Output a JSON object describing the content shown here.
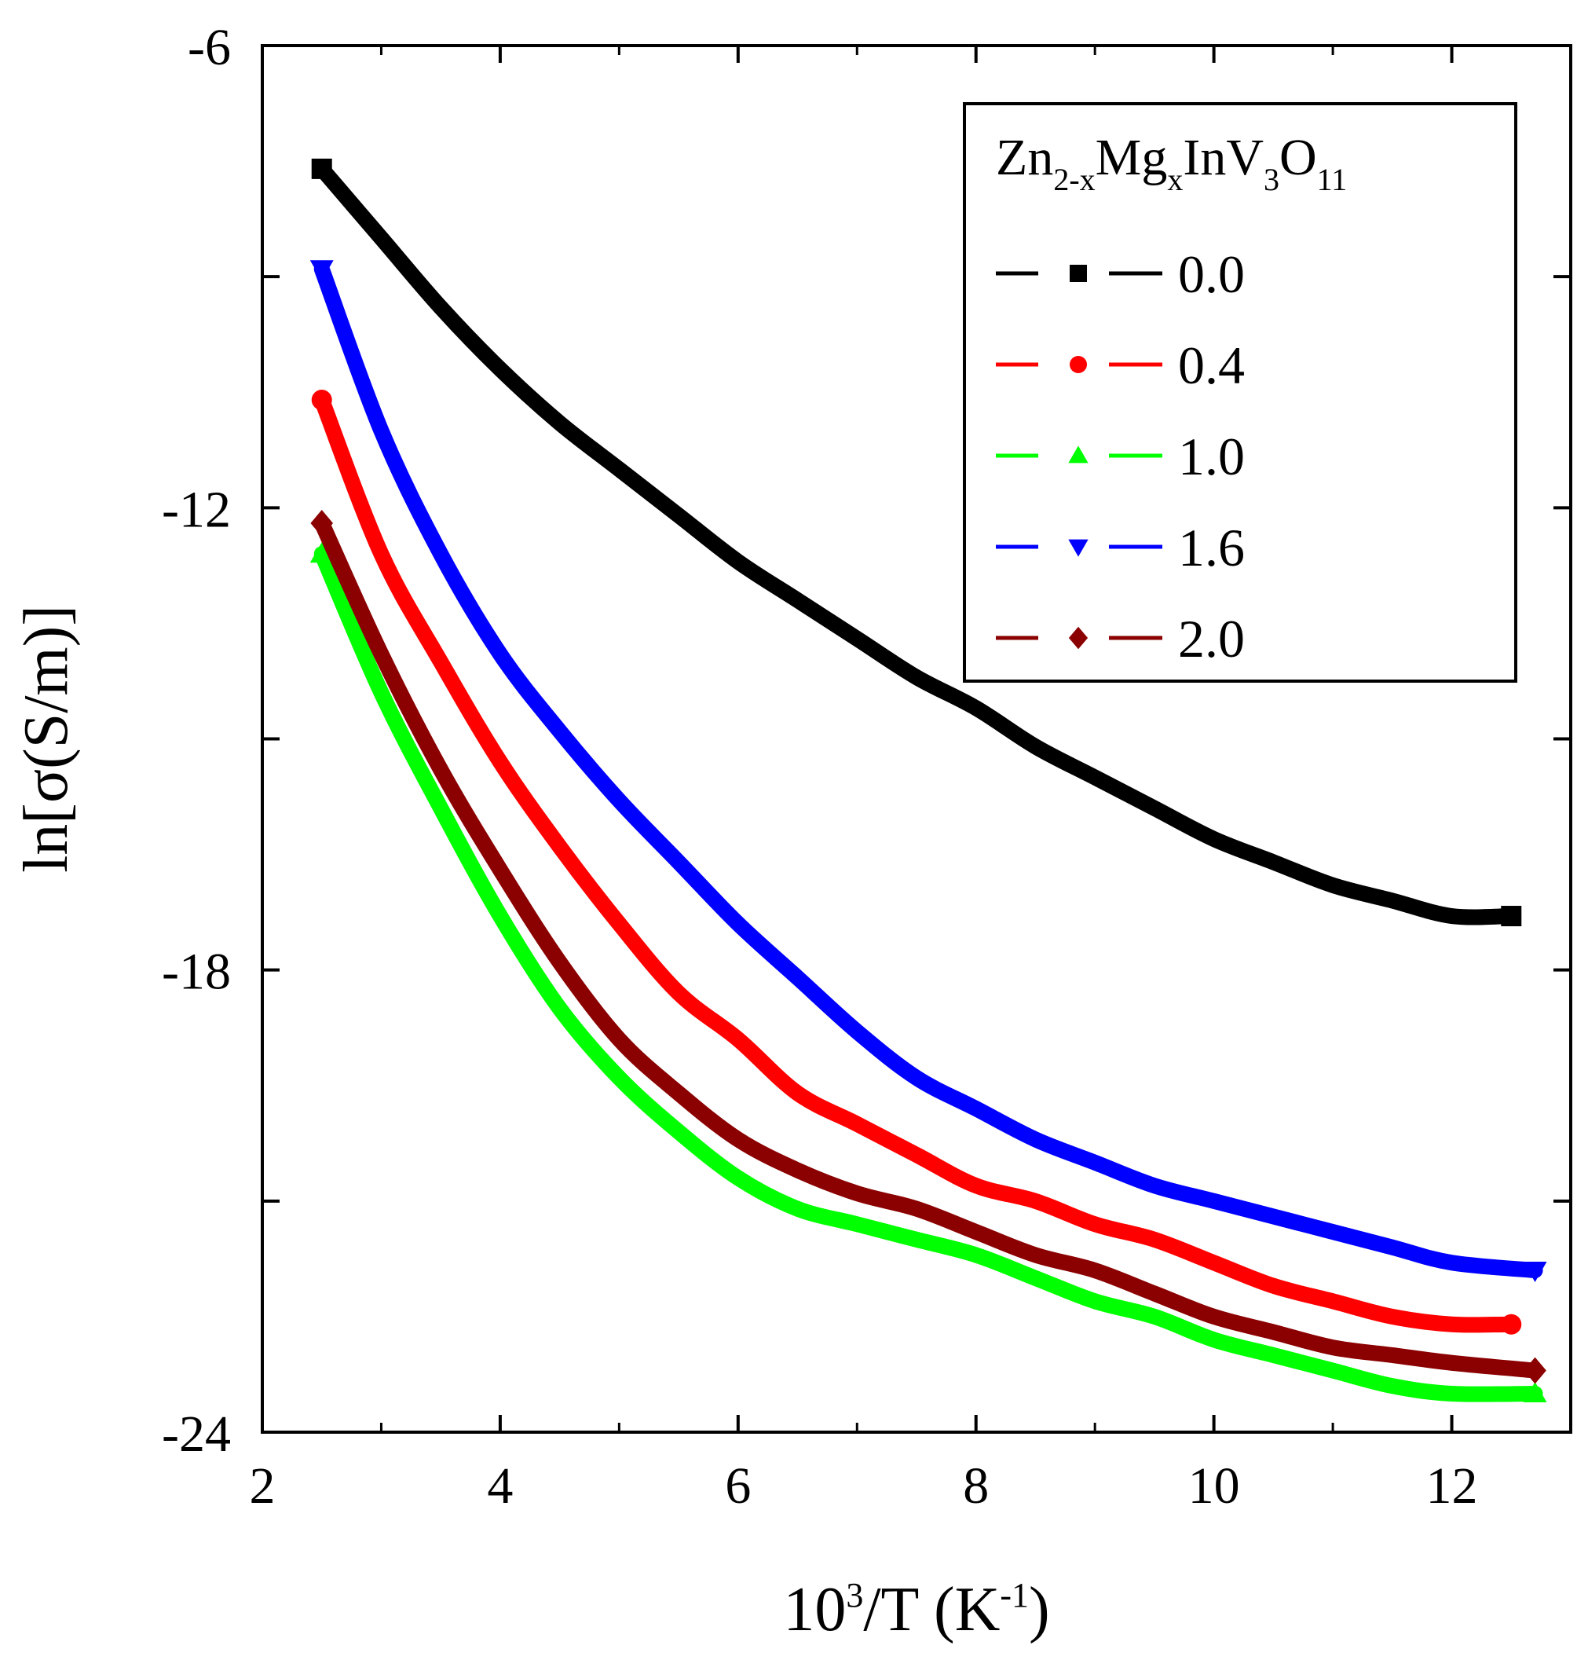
{
  "chart_data": {
    "type": "line",
    "title": "",
    "xlabel": {
      "base": "10",
      "base_sup": "3",
      "mid": "/T  (K",
      "mid_sup": "-1",
      "end": ")"
    },
    "ylabel": "ln[σ(S/m)]",
    "xlim": [
      2,
      13
    ],
    "ylim": [
      -24,
      -6
    ],
    "x_ticks": [
      2,
      4,
      6,
      8,
      10,
      12
    ],
    "x_tick_labels": [
      "2",
      "4",
      "6",
      "8",
      "10",
      "12"
    ],
    "y_ticks": [
      -24,
      -18,
      -12,
      -6
    ],
    "y_tick_labels": [
      "-24",
      "-18",
      "-12",
      "-6"
    ],
    "y_minor_ticks": [
      -21,
      -15,
      -9
    ],
    "grid": false,
    "legend": {
      "position": "top-right",
      "title": {
        "parts": [
          {
            "t": "Zn",
            "sub": false
          },
          {
            "t": "2-x",
            "sub": true
          },
          {
            "t": "Mg",
            "sub": false
          },
          {
            "t": "x",
            "sub": true
          },
          {
            "t": "InV",
            "sub": false
          },
          {
            "t": "3",
            "sub": true
          },
          {
            "t": "O",
            "sub": false
          },
          {
            "t": "11",
            "sub": true
          }
        ]
      }
    },
    "series": [
      {
        "name": "0.0",
        "color": "#000000",
        "marker": "square",
        "x": [
          2.5,
          3.0,
          3.5,
          4.0,
          4.5,
          5.0,
          5.5,
          6.0,
          6.5,
          7.0,
          7.5,
          8.0,
          8.5,
          9.0,
          9.5,
          10.0,
          10.5,
          11.0,
          11.5,
          12.0,
          12.5
        ],
        "y": [
          -7.6,
          -8.5,
          -9.4,
          -10.2,
          -10.9,
          -11.5,
          -12.1,
          -12.7,
          -13.2,
          -13.7,
          -14.2,
          -14.6,
          -15.1,
          -15.5,
          -15.9,
          -16.3,
          -16.6,
          -16.9,
          -17.1,
          -17.3,
          -17.3
        ]
      },
      {
        "name": "0.4",
        "color": "#ff0000",
        "marker": "circle",
        "x": [
          2.5,
          3.0,
          3.5,
          4.0,
          4.5,
          5.0,
          5.5,
          6.0,
          6.5,
          7.0,
          7.5,
          8.0,
          8.5,
          9.0,
          9.5,
          10.0,
          10.5,
          11.0,
          11.5,
          12.0,
          12.5
        ],
        "y": [
          -10.6,
          -12.6,
          -14.0,
          -15.3,
          -16.4,
          -17.4,
          -18.3,
          -18.9,
          -19.6,
          -20.0,
          -20.4,
          -20.8,
          -21.0,
          -21.3,
          -21.5,
          -21.8,
          -22.1,
          -22.3,
          -22.5,
          -22.6,
          -22.6
        ]
      },
      {
        "name": "1.0",
        "color": "#00ff00",
        "marker": "triangle-up",
        "x": [
          2.5,
          3.0,
          3.5,
          4.0,
          4.5,
          5.0,
          5.5,
          6.0,
          6.5,
          7.0,
          7.5,
          8.0,
          8.5,
          9.0,
          9.5,
          10.0,
          10.5,
          11.0,
          11.5,
          12.0,
          12.7
        ],
        "y": [
          -12.6,
          -14.4,
          -15.9,
          -17.3,
          -18.5,
          -19.4,
          -20.1,
          -20.7,
          -21.1,
          -21.3,
          -21.5,
          -21.7,
          -22.0,
          -22.3,
          -22.5,
          -22.8,
          -23.0,
          -23.2,
          -23.4,
          -23.5,
          -23.5
        ]
      },
      {
        "name": "1.6",
        "color": "#0000ff",
        "marker": "triangle-down",
        "x": [
          2.5,
          3.0,
          3.5,
          4.0,
          4.5,
          5.0,
          5.5,
          6.0,
          6.5,
          7.0,
          7.5,
          8.0,
          8.5,
          9.0,
          9.5,
          10.0,
          10.5,
          11.0,
          11.5,
          12.0,
          12.7
        ],
        "y": [
          -8.9,
          -11.0,
          -12.6,
          -13.9,
          -14.9,
          -15.8,
          -16.6,
          -17.4,
          -18.1,
          -18.8,
          -19.4,
          -19.8,
          -20.2,
          -20.5,
          -20.8,
          -21.0,
          -21.2,
          -21.4,
          -21.6,
          -21.8,
          -21.9
        ]
      },
      {
        "name": "2.0",
        "color": "#8b0000",
        "marker": "diamond",
        "x": [
          2.5,
          3.0,
          3.5,
          4.0,
          4.5,
          5.0,
          5.5,
          6.0,
          6.5,
          7.0,
          7.5,
          8.0,
          8.5,
          9.0,
          9.5,
          10.0,
          10.5,
          11.0,
          11.5,
          12.0,
          12.7
        ],
        "y": [
          -12.2,
          -13.9,
          -15.4,
          -16.7,
          -17.9,
          -18.9,
          -19.6,
          -20.2,
          -20.6,
          -20.9,
          -21.1,
          -21.4,
          -21.7,
          -21.9,
          -22.2,
          -22.5,
          -22.7,
          -22.9,
          -23.0,
          -23.1,
          -23.2
        ]
      }
    ]
  }
}
